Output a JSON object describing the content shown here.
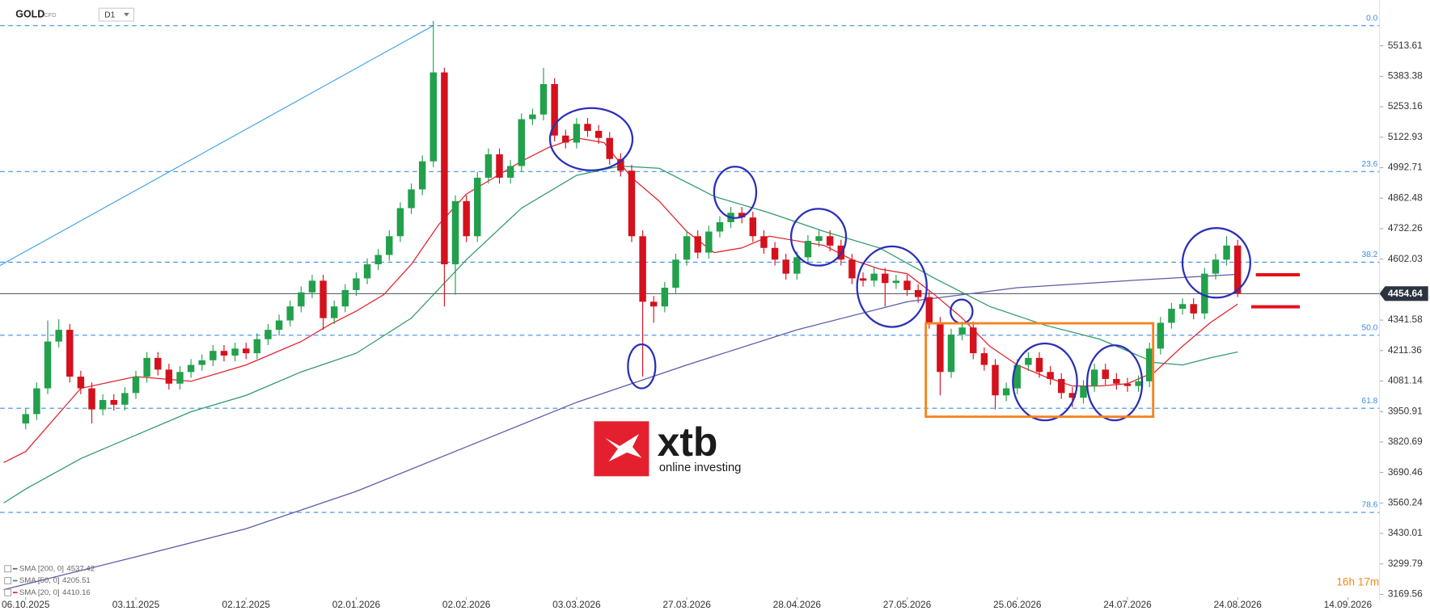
{
  "chart_data": {
    "type": "candlestick",
    "symbol": "GOLD",
    "instrument_type": "CFD",
    "timeframe": "D1",
    "xlim": [
      -4.66,
      245.76
    ],
    "ylim": [
      3165.65,
      5709.3
    ],
    "xticks": [
      {
        "value": 0,
        "label": "06.10.2025"
      },
      {
        "value": 20,
        "label": "03.11.2025"
      },
      {
        "value": 40,
        "label": "02.12.2025"
      },
      {
        "value": 60,
        "label": "02.01.2026"
      },
      {
        "value": 80,
        "label": "02.02.2026"
      },
      {
        "value": 100,
        "label": "03.03.2026"
      },
      {
        "value": 120,
        "label": "27.03.2026"
      },
      {
        "value": 140,
        "label": "28.04.2026"
      },
      {
        "value": 160,
        "label": "27.05.2026"
      },
      {
        "value": 180,
        "label": "25.06.2026"
      },
      {
        "value": 200,
        "label": "24.07.2026"
      },
      {
        "value": 220,
        "label": "24.08.2026"
      },
      {
        "value": 240,
        "label": "14.09.2026"
      }
    ],
    "yticks": [
      5513.61,
      5383.38,
      5253.16,
      5122.93,
      4992.71,
      4862.48,
      4732.26,
      4602.03,
      4341.58,
      4211.36,
      4081.14,
      3950.91,
      3820.69,
      3690.46,
      3560.24,
      3430.01,
      3299.79,
      3169.56
    ],
    "up_color": "#22a04b",
    "down_color": "#d4111c",
    "x": [
      0,
      2,
      4,
      6,
      8,
      10,
      12,
      14,
      16,
      18,
      20,
      22,
      24,
      26,
      28,
      30,
      32,
      34,
      36,
      38,
      40,
      42,
      44,
      46,
      48,
      50,
      52,
      54,
      56,
      58,
      60,
      62,
      64,
      66,
      68,
      70,
      72,
      74,
      76,
      78,
      80,
      82,
      84,
      86,
      88,
      90,
      92,
      94,
      96,
      98,
      100,
      102,
      104,
      106,
      108,
      110,
      112,
      114,
      116,
      118,
      120,
      122,
      124,
      126,
      128,
      130,
      132,
      134,
      136,
      138,
      140,
      142,
      144,
      146,
      148,
      150,
      152,
      154,
      156,
      158,
      160,
      162,
      164,
      166,
      168,
      170,
      172,
      174,
      176,
      178,
      180,
      182,
      184,
      186,
      188,
      190,
      192,
      194,
      196,
      198,
      200,
      202,
      204,
      206,
      208,
      210,
      212,
      214,
      216,
      218,
      220
    ],
    "open": [
      3900,
      3940,
      4050,
      4250,
      4300,
      4100,
      4050,
      3960,
      4000,
      3980,
      4030,
      4100,
      4180,
      4130,
      4070,
      4120,
      4150,
      4170,
      4210,
      4190,
      4220,
      4200,
      4260,
      4300,
      4340,
      4400,
      4460,
      4510,
      4350,
      4400,
      4470,
      4520,
      4580,
      4620,
      4700,
      4820,
      4900,
      5020,
      5400,
      4580,
      4850,
      4700,
      4950,
      5050,
      4950,
      5000,
      5200,
      5220,
      5350,
      5130,
      5100,
      5180,
      5150,
      5120,
      5030,
      4980,
      4700,
      4420,
      4400,
      4480,
      4600,
      4700,
      4630,
      4720,
      4760,
      4800,
      4780,
      4700,
      4650,
      4600,
      4540,
      4610,
      4680,
      4700,
      4660,
      4600,
      4520,
      4510,
      4540,
      4500,
      4510,
      4470,
      4440,
      4330,
      4120,
      4280,
      4310,
      4200,
      4150,
      4020,
      4050,
      4150,
      4180,
      4120,
      4090,
      4030,
      4010,
      4060,
      4130,
      4090,
      4070,
      4060,
      4080,
      4220,
      4330,
      4390,
      4410,
      4370,
      4540,
      4600,
      4660
    ],
    "high": [
      3965,
      4075,
      4340,
      4345,
      4325,
      4125,
      4075,
      4025,
      4025,
      4055,
      4125,
      4205,
      4205,
      4155,
      4145,
      4175,
      4195,
      4235,
      4235,
      4245,
      4245,
      4285,
      4325,
      4365,
      4425,
      4485,
      4535,
      4535,
      4425,
      4495,
      4545,
      4605,
      4645,
      4725,
      4845,
      4925,
      5045,
      5620,
      5420,
      4875,
      4875,
      4975,
      5075,
      5075,
      5025,
      5225,
      5245,
      5420,
      5375,
      5155,
      5205,
      5205,
      5175,
      5145,
      5055,
      5005,
      4725,
      4445,
      4505,
      4625,
      4725,
      4725,
      4745,
      4785,
      4825,
      4825,
      4805,
      4725,
      4675,
      4625,
      4635,
      4705,
      4725,
      4725,
      4685,
      4625,
      4545,
      4565,
      4565,
      4535,
      4535,
      4495,
      4465,
      4355,
      4305,
      4335,
      4335,
      4225,
      4175,
      4075,
      4175,
      4205,
      4205,
      4145,
      4115,
      4055,
      4085,
      4155,
      4155,
      4115,
      4095,
      4105,
      4245,
      4355,
      4415,
      4435,
      4435,
      4565,
      4625,
      4700,
      4685
    ],
    "low": [
      3875,
      3915,
      4025,
      4225,
      4075,
      4025,
      3900,
      3935,
      3955,
      3955,
      4005,
      4075,
      4105,
      4045,
      4045,
      4095,
      4125,
      4145,
      4165,
      4165,
      4175,
      4175,
      4235,
      4275,
      4315,
      4375,
      4435,
      4300,
      4325,
      4375,
      4445,
      4495,
      4555,
      4595,
      4675,
      4795,
      4875,
      4995,
      4400,
      4450,
      4675,
      4675,
      4925,
      4925,
      4925,
      4975,
      5175,
      5195,
      5105,
      5075,
      5075,
      5125,
      5095,
      5005,
      4955,
      4675,
      4100,
      4330,
      4375,
      4455,
      4575,
      4605,
      4605,
      4695,
      4735,
      4755,
      4675,
      4625,
      4575,
      4515,
      4515,
      4585,
      4655,
      4635,
      4575,
      4495,
      4485,
      4485,
      4400,
      4475,
      4445,
      4415,
      4305,
      4020,
      4095,
      4255,
      4175,
      4125,
      3960,
      3995,
      4025,
      4125,
      4095,
      4065,
      4005,
      3970,
      3985,
      4035,
      4065,
      4045,
      4035,
      4035,
      4055,
      4195,
      4305,
      4365,
      4345,
      4345,
      4515,
      4575,
      4440
    ],
    "close": [
      3940,
      4050,
      4250,
      4300,
      4100,
      4050,
      3960,
      4000,
      3980,
      4030,
      4100,
      4180,
      4130,
      4070,
      4120,
      4150,
      4170,
      4210,
      4190,
      4220,
      4200,
      4260,
      4300,
      4340,
      4400,
      4460,
      4510,
      4350,
      4400,
      4470,
      4520,
      4580,
      4620,
      4700,
      4820,
      4900,
      5020,
      5400,
      4580,
      4850,
      4700,
      4950,
      5050,
      4950,
      5000,
      5200,
      5220,
      5350,
      5130,
      5100,
      5180,
      5150,
      5120,
      5030,
      4980,
      4700,
      4420,
      4400,
      4480,
      4600,
      4700,
      4630,
      4720,
      4760,
      4800,
      4780,
      4700,
      4650,
      4600,
      4540,
      4610,
      4680,
      4700,
      4660,
      4600,
      4520,
      4510,
      4540,
      4500,
      4510,
      4470,
      4440,
      4330,
      4120,
      4280,
      4310,
      4200,
      4150,
      4020,
      4050,
      4150,
      4180,
      4120,
      4090,
      4030,
      4010,
      4060,
      4130,
      4090,
      4070,
      4060,
      4080,
      4220,
      4330,
      4390,
      4410,
      4370,
      4540,
      4600,
      4660,
      4454.64
    ],
    "overlays": [
      {
        "name": "SMA [200, 0]",
        "color": "#5b5ba6",
        "x": [
          -4,
          20,
          40,
          60,
          80,
          100,
          120,
          140,
          160,
          180,
          200,
          220
        ],
        "values": [
          3190,
          3330,
          3450,
          3610,
          3800,
          3990,
          4150,
          4300,
          4420,
          4480,
          4510,
          4537.42
        ]
      },
      {
        "name": "SMA [50, 0]",
        "color": "#2f9a68",
        "x": [
          -4,
          0,
          10,
          20,
          30,
          40,
          50,
          60,
          70,
          80,
          90,
          100,
          108,
          115,
          125,
          135,
          145,
          155,
          165,
          175,
          185,
          195,
          205,
          210,
          215,
          220
        ],
        "values": [
          3560,
          3620,
          3750,
          3850,
          3950,
          4020,
          4120,
          4200,
          4350,
          4600,
          4820,
          4960,
          5000,
          4990,
          4870,
          4800,
          4720,
          4650,
          4520,
          4400,
          4320,
          4260,
          4160,
          4150,
          4180,
          4205.51
        ]
      },
      {
        "name": "SMA [20, 0]",
        "color": "#e3202b",
        "x": [
          -4,
          0,
          10,
          20,
          30,
          40,
          50,
          55,
          60,
          65,
          70,
          75,
          80,
          85,
          90,
          95,
          100,
          105,
          110,
          115,
          120,
          125,
          130,
          135,
          140,
          145,
          150,
          155,
          160,
          165,
          170,
          175,
          180,
          185,
          190,
          195,
          200,
          205,
          210,
          215,
          220
        ],
        "values": [
          3733,
          3780,
          4050,
          4100,
          4080,
          4150,
          4250,
          4320,
          4380,
          4450,
          4580,
          4750,
          4880,
          4950,
          5020,
          5080,
          5120,
          5100,
          4950,
          4850,
          4720,
          4630,
          4650,
          4700,
          4680,
          4660,
          4600,
          4560,
          4540,
          4450,
          4350,
          4230,
          4150,
          4100,
          4060,
          4060,
          4070,
          4120,
          4230,
          4330,
          4410.16
        ]
      }
    ],
    "fib_color": "#3a8ee6",
    "fib_levels": [
      {
        "label": "0.0",
        "value": 5600
      },
      {
        "label": "23.6",
        "value": 4976
      },
      {
        "label": "38.2",
        "value": 4589
      },
      {
        "label": "50.0",
        "value": 4277
      },
      {
        "label": "61.8",
        "value": 3965
      },
      {
        "label": "78.6",
        "value": 3520
      }
    ],
    "trendline": {
      "color": "#3aa0e8",
      "x": [
        -4.66,
        74
      ],
      "values": [
        4575,
        5600
      ]
    },
    "price_line": 4454.64,
    "countdown": "16h 17m",
    "watermark": {
      "brand": "xtb",
      "tagline": "online investing"
    }
  }
}
